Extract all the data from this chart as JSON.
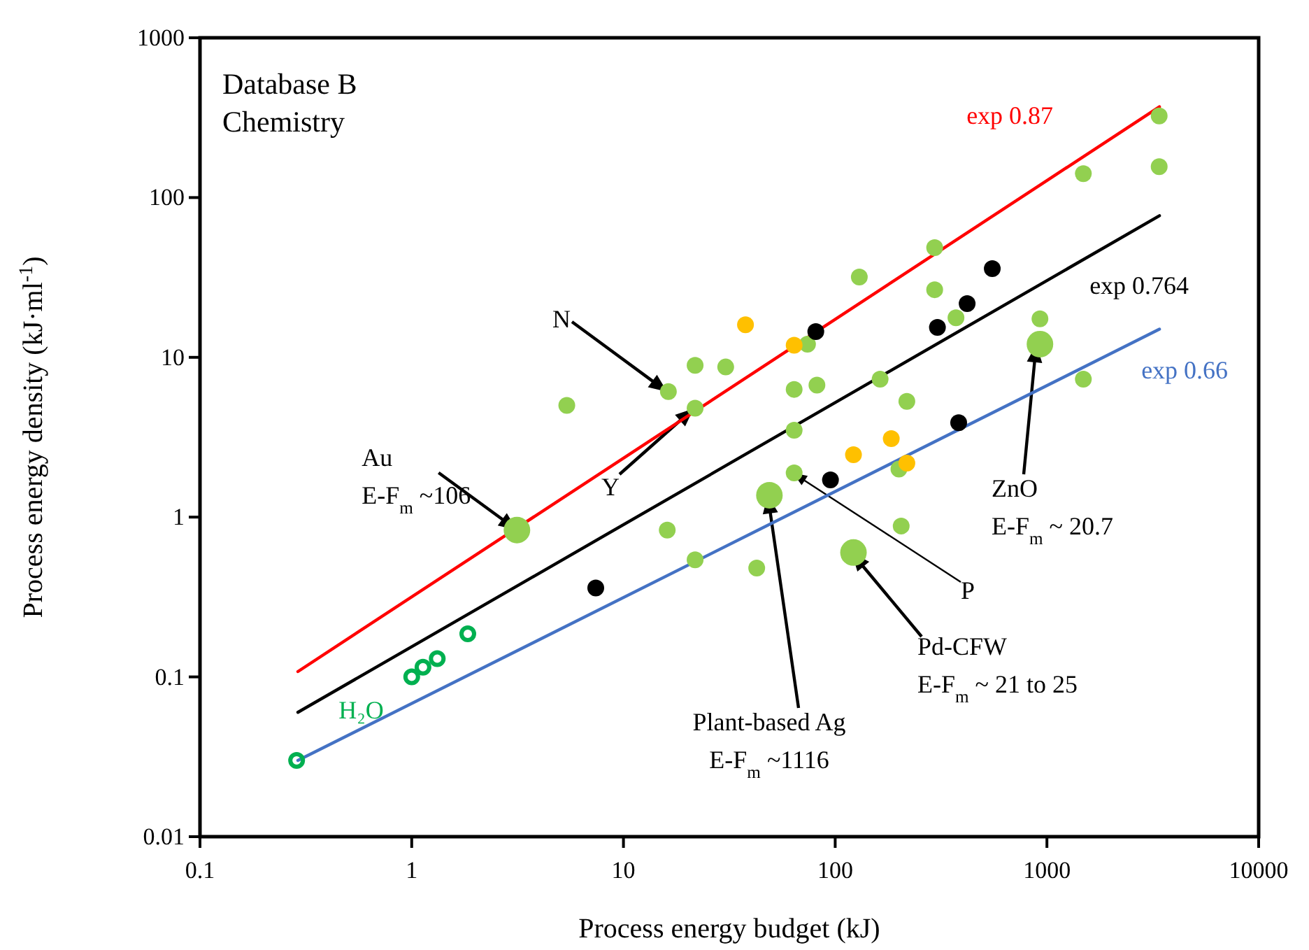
{
  "chart_data": {
    "type": "scatter",
    "title": "Database B\nChemistry",
    "xlabel": "Process energy budget (kJ)",
    "ylabel": "Process energy density (kJ·ml$^{-1}$)",
    "log": "xy",
    "grid": false,
    "legend": false,
    "marker": "circle",
    "xlim": [
      0.1,
      10000
    ],
    "xticks": [
      0.1,
      1,
      10,
      100,
      1000,
      10000
    ],
    "ylim": [
      0.01,
      1000
    ],
    "yticks": [
      0.01,
      0.1,
      1,
      10,
      100,
      1000
    ],
    "series": [
      {
        "type": "line",
        "name": "exp 0.87",
        "color": "#ff0000",
        "marker": "none",
        "line_style": "solid",
        "x": [
          0.29,
          3400
        ],
        "values": [
          0.108,
          370
        ]
      },
      {
        "type": "line",
        "name": "exp 0.764",
        "color": "#000000",
        "marker": "none",
        "line_style": "solid",
        "x": [
          0.29,
          3400
        ],
        "values": [
          0.06,
          77
        ]
      },
      {
        "type": "line",
        "name": "exp 0.66",
        "color": "#4472c4",
        "marker": "none",
        "line_style": "solid",
        "x": [
          0.29,
          3400
        ],
        "values": [
          0.03,
          15
        ]
      },
      {
        "type": "scatter",
        "color": "#92d050",
        "x": [
          5.4,
          16.3,
          21.8,
          30.4,
          21.8,
          16.1,
          21.8,
          42.6,
          64,
          64,
          64,
          74,
          82,
          130,
          163,
          218,
          295,
          295,
          372,
          200,
          205,
          927,
          1486,
          1486,
          3390,
          3390
        ],
        "values": [
          5.0,
          6.1,
          8.9,
          8.7,
          4.8,
          0.83,
          0.54,
          0.48,
          1.89,
          3.5,
          6.3,
          12.1,
          6.7,
          31.8,
          7.3,
          5.3,
          48.6,
          26.5,
          17.7,
          2.0,
          0.88,
          17.4,
          7.3,
          141,
          324,
          156
        ]
      },
      {
        "type": "bubble",
        "color": "#92d050",
        "x": [
          3.14,
          48.9,
          122,
          927
        ],
        "values": [
          0.83,
          1.37,
          0.6,
          12.1
        ],
        "sizes": [
          1,
          1,
          1,
          1
        ]
      },
      {
        "color": "#000000",
        "x": [
          7.4,
          81,
          304,
          420,
          552,
          383,
          95
        ],
        "values": [
          0.36,
          14.5,
          15.4,
          21.7,
          35.9,
          3.9,
          1.71
        ]
      },
      {
        "color": "#ffc000",
        "x": [
          37.7,
          64,
          122,
          184,
          218
        ],
        "values": [
          16.0,
          11.9,
          2.46,
          3.1,
          2.18
        ]
      },
      {
        "name": "H₂O",
        "color": "#00b050",
        "marker": "circle-open",
        "x": [
          0.286,
          1.0,
          1.13,
          1.32,
          1.84
        ],
        "values": [
          0.03,
          0.1,
          0.115,
          0.13,
          0.186
        ]
      }
    ],
    "annotations": [
      "N",
      "Y",
      {
        "text": "Au\nE-F$_{m}$  ~106",
        "x": 3.14,
        "y": 0.83
      },
      "Plant-based Ag\nE-F$_{m}$ ~1116",
      "P",
      "Pd-CFW\nE-F$_{m}$ ~ 21 to 25",
      "ZnO\nE-F$_{m}$ ~ 20.7"
    ]
  }
}
